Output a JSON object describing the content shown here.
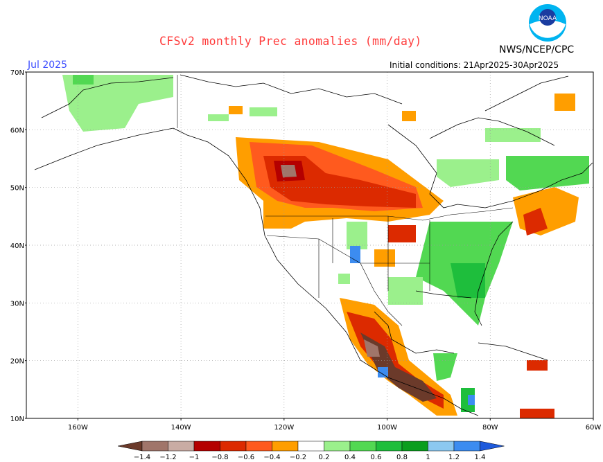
{
  "header": {
    "title": "CFSv2 monthly Prec anomalies (mm/day)",
    "agency": "NWS/NCEP/CPC",
    "month": "Jul 2025",
    "initial_conditions": "Initial conditions: 21Apr2025-30Apr2025",
    "logo_text": "NOAA"
  },
  "map": {
    "lat_labels": [
      "70N",
      "60N",
      "50N",
      "40N",
      "30N",
      "20N",
      "10N"
    ],
    "lon_labels": [
      "160W",
      "140W",
      "120W",
      "100W",
      "80W",
      "60W"
    ],
    "lat_range": [
      10,
      70
    ],
    "lon_range": [
      -170,
      -60
    ],
    "grid": true
  },
  "legend": {
    "labels": [
      "−1.4",
      "−1.2",
      "−1",
      "−0.8",
      "−0.6",
      "−0.4",
      "−0.2",
      "0.2",
      "0.4",
      "0.6",
      "0.8",
      "1",
      "1.2",
      "1.4"
    ],
    "colors": [
      "#6b3a2a",
      "#a0756a",
      "#c9aca4",
      "#b40000",
      "#dc2a00",
      "#ff5a1e",
      "#ff9e00",
      "#ffffff",
      "#9bf08c",
      "#52d852",
      "#1ebe3c",
      "#0a9e1e",
      "#8cc8f0",
      "#3c8cf0",
      "#1e5adc"
    ]
  }
}
